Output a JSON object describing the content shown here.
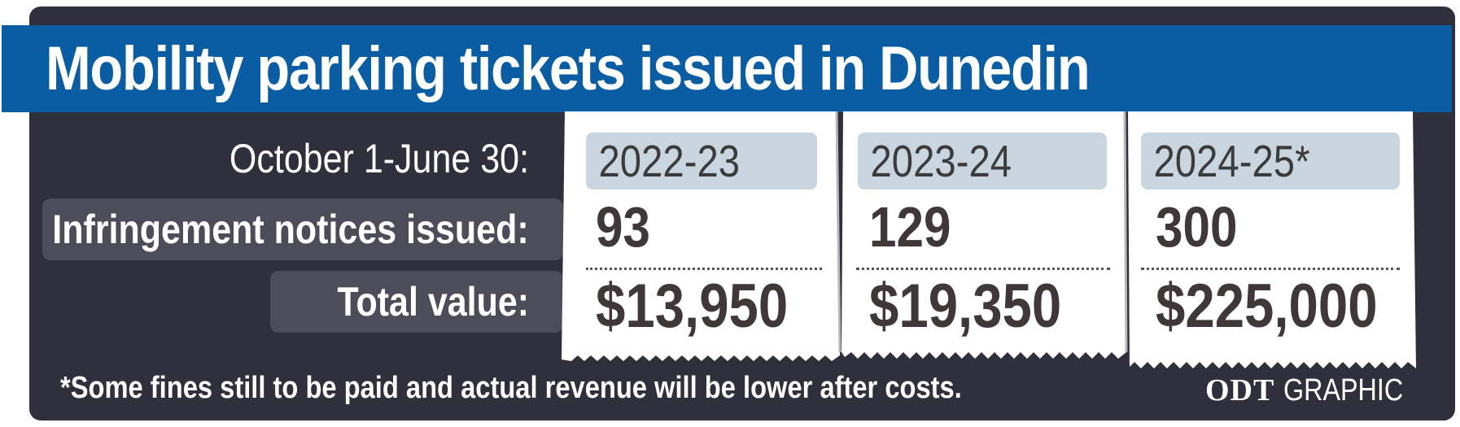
{
  "title": "Mobility parking tickets issued in Dunedin",
  "labels": {
    "period": "October 1-June 30:",
    "notices": "Infringement notices issued:",
    "value": "Total value:"
  },
  "columns": [
    {
      "period": "2022-23",
      "notices": "93",
      "value": "$13,950"
    },
    {
      "period": "2023-24",
      "notices": "129",
      "value": "$19,350"
    },
    {
      "period": "2024-25*",
      "notices": "300",
      "value": "$225,000"
    }
  ],
  "footnote": "*Some fines still to be paid and actual revenue will be lower after costs.",
  "credit": {
    "brand": "ODT",
    "suffix": "GRAPHIC"
  },
  "colors": {
    "panel": "#2f303b",
    "title_band": "#0a5da2",
    "label_box": "#4c4d58",
    "period_chip": "#c9d6e0",
    "receipt": "#ffffff",
    "figure_text": "#403838"
  }
}
